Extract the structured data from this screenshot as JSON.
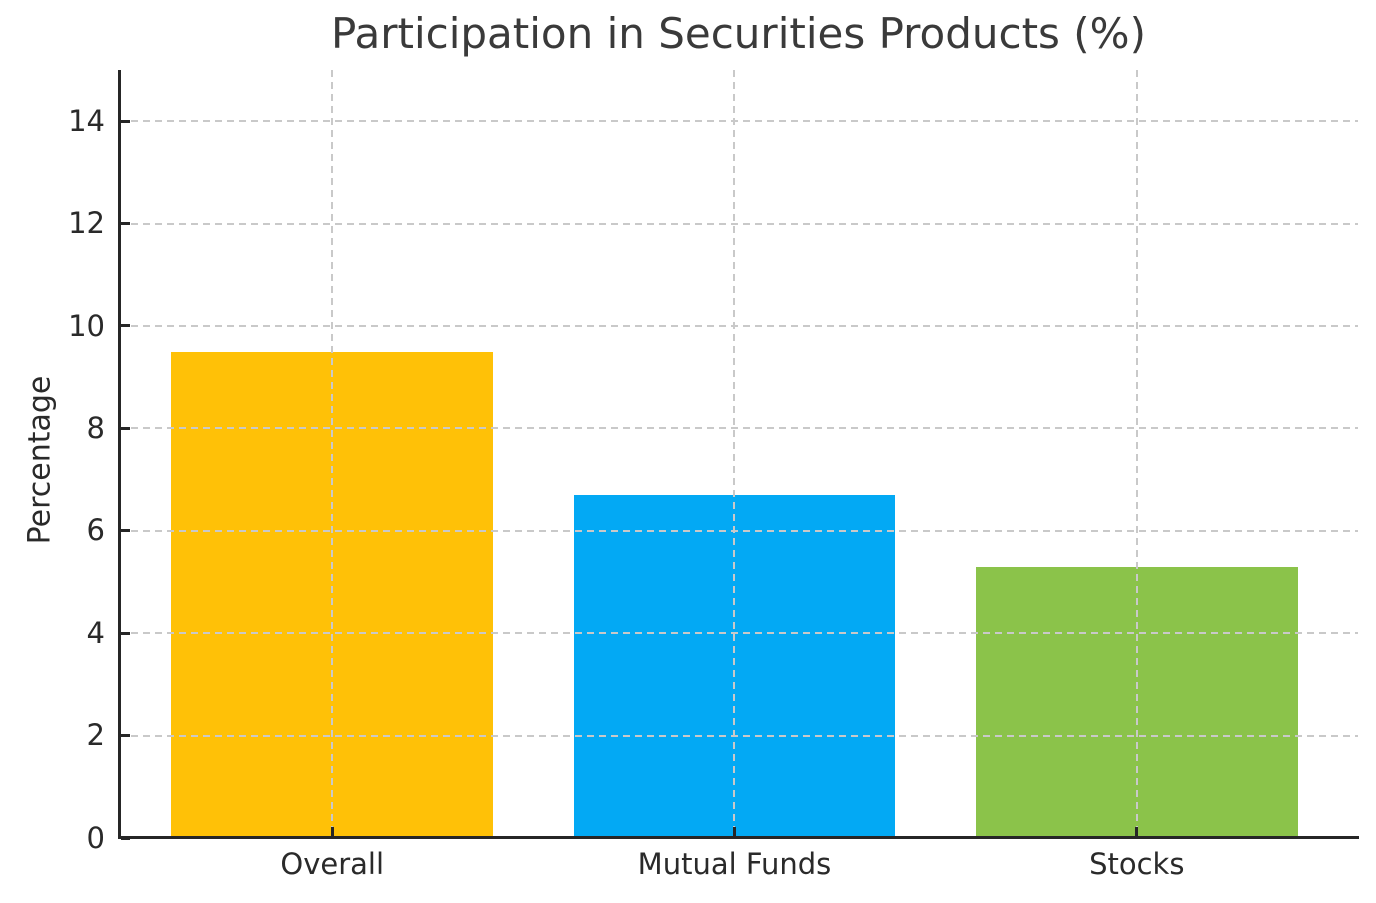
{
  "chart_data": {
    "type": "bar",
    "title": "Participation in Securities Products (%)",
    "xlabel": "",
    "ylabel": "Percentage",
    "categories": [
      "Overall",
      "Mutual Funds",
      "Stocks"
    ],
    "values": [
      9.5,
      6.7,
      5.3
    ],
    "bar_colors": [
      "#FFC107",
      "#03A9F4",
      "#8BC34A"
    ],
    "ylim": [
      0,
      15
    ],
    "yticks": [
      0,
      2,
      4,
      6,
      8,
      10,
      12,
      14
    ],
    "ytick_labels": [
      "0",
      "2",
      "4",
      "6",
      "8",
      "10",
      "12",
      "14"
    ],
    "xlim": [
      -0.53,
      2.55
    ],
    "bar_width": 0.8,
    "grid": "dashed-both-axes-above-bars",
    "legend_position": "none",
    "colors": {
      "title_text": "#3a3a3a",
      "tick_text": "#2a2a2a",
      "spine": "#262626",
      "grid": "#c9c9c9",
      "background": "#ffffff"
    }
  }
}
